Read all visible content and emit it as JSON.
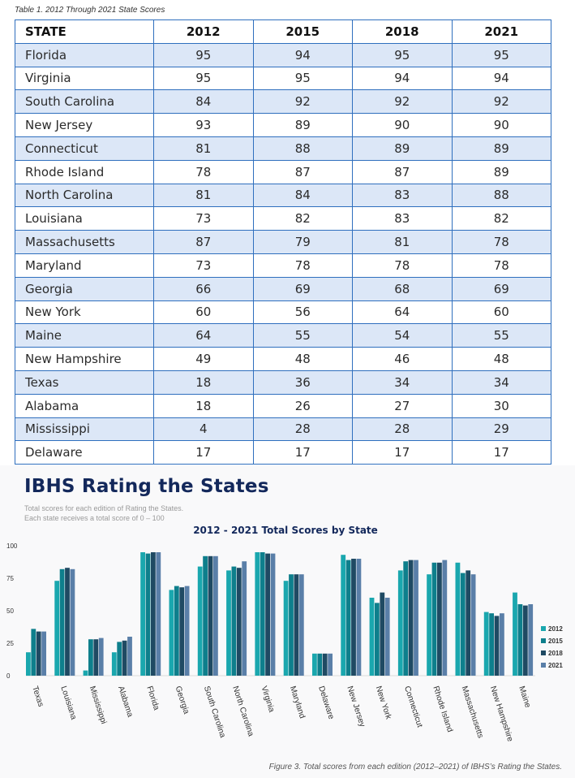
{
  "table": {
    "caption": "Table 1. 2012 Through 2021 State Scores",
    "headers": [
      "STATE",
      "2012",
      "2015",
      "2018",
      "2021"
    ],
    "rows": [
      [
        "Florida",
        "95",
        "94",
        "95",
        "95"
      ],
      [
        "Virginia",
        "95",
        "95",
        "94",
        "94"
      ],
      [
        "South Carolina",
        "84",
        "92",
        "92",
        "92"
      ],
      [
        "New Jersey",
        "93",
        "89",
        "90",
        "90"
      ],
      [
        "Connecticut",
        "81",
        "88",
        "89",
        "89"
      ],
      [
        "Rhode Island",
        "78",
        "87",
        "87",
        "89"
      ],
      [
        "North Carolina",
        "81",
        "84",
        "83",
        "88"
      ],
      [
        "Louisiana",
        "73",
        "82",
        "83",
        "82"
      ],
      [
        "Massachusetts",
        "87",
        "79",
        "81",
        "78"
      ],
      [
        "Maryland",
        "73",
        "78",
        "78",
        "78"
      ],
      [
        "Georgia",
        "66",
        "69",
        "68",
        "69"
      ],
      [
        "New York",
        "60",
        "56",
        "64",
        "60"
      ],
      [
        "Maine",
        "64",
        "55",
        "54",
        "55"
      ],
      [
        "New Hampshire",
        "49",
        "48",
        "46",
        "48"
      ],
      [
        "Texas",
        "18",
        "36",
        "34",
        "34"
      ],
      [
        "Alabama",
        "18",
        "26",
        "27",
        "30"
      ],
      [
        "Mississippi",
        "4",
        "28",
        "28",
        "29"
      ],
      [
        "Delaware",
        "17",
        "17",
        "17",
        "17"
      ]
    ]
  },
  "figure": {
    "title": "IBHS Rating the States",
    "subtitle_lines": [
      "Total scores for each edition of Rating the States.",
      "Each state receives a total score of 0 – 100"
    ],
    "caption": "Figure 3. Total scores from each edition (2012–2021) of IBHS’s Rating the States."
  },
  "chart_data": {
    "type": "bar",
    "title": "2012 - 2021 Total Scores by State",
    "xlabel": "",
    "ylabel": "",
    "ylim": [
      0,
      100
    ],
    "yticks": [
      0,
      25,
      50,
      75,
      100
    ],
    "grid": false,
    "legend_position": "right",
    "categories": [
      "Texas",
      "Louisiana",
      "Mississippi",
      "Alabama",
      "Florida",
      "Georgia",
      "South Carolina",
      "North Carolina",
      "Virginia",
      "Maryland",
      "Delaware",
      "New Jersey",
      "New York",
      "Connecticut",
      "Rhode Island",
      "Massachusetts",
      "New Hampshire",
      "Maine"
    ],
    "series": [
      {
        "name": "2012",
        "color": "#1aa7ae",
        "values": [
          18,
          73,
          4,
          18,
          95,
          66,
          84,
          81,
          95,
          73,
          17,
          93,
          60,
          81,
          78,
          87,
          49,
          64
        ]
      },
      {
        "name": "2015",
        "color": "#0e7f8c",
        "values": [
          36,
          82,
          28,
          26,
          94,
          69,
          92,
          84,
          95,
          78,
          17,
          89,
          56,
          88,
          87,
          79,
          48,
          55
        ]
      },
      {
        "name": "2018",
        "color": "#1f4a63",
        "values": [
          34,
          83,
          28,
          27,
          95,
          68,
          92,
          83,
          94,
          78,
          17,
          90,
          64,
          89,
          87,
          81,
          46,
          54
        ]
      },
      {
        "name": "2021",
        "color": "#5a7fa8",
        "values": [
          34,
          82,
          29,
          30,
          95,
          69,
          92,
          88,
          94,
          78,
          17,
          90,
          60,
          89,
          89,
          78,
          48,
          55
        ]
      }
    ]
  }
}
